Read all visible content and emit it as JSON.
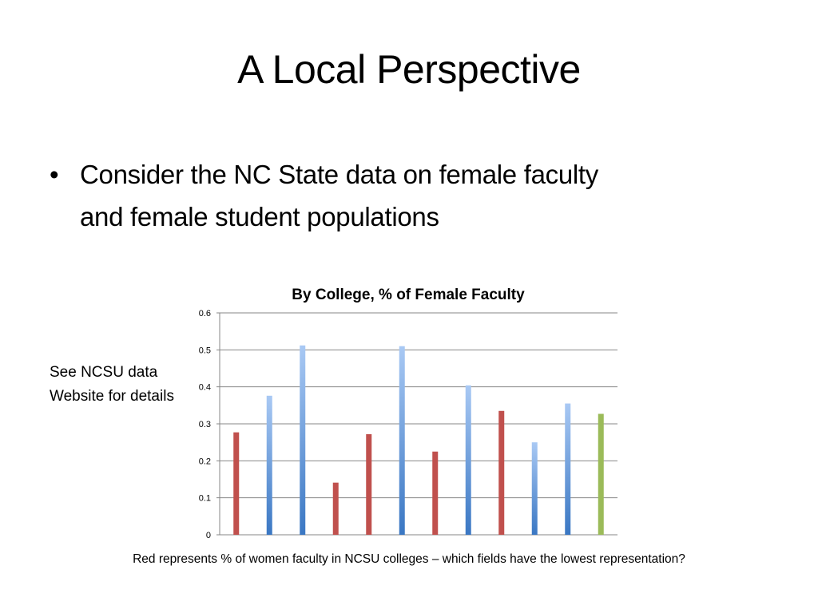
{
  "slide": {
    "title": "A Local Perspective",
    "bullets": [
      {
        "marker": "•",
        "lines": [
          "Consider the NC State data on female faculty",
          "and female student populations"
        ]
      }
    ],
    "side_note": [
      "See NCSU data",
      "Website for details"
    ],
    "caption": "Red represents % of women faculty in NCSU colleges – which fields have the lowest representation?"
  },
  "colors": {
    "red": "#C0504D",
    "blue_top": "#A9C9F4",
    "blue_bottom": "#3A77C3",
    "green": "#9BBB59",
    "gridline": "#878787",
    "axis": "#878787"
  },
  "chart_data": {
    "type": "bar",
    "title": "By College, % of Female Faculty",
    "xlabel": "",
    "ylabel": "",
    "ylim": [
      0,
      0.6
    ],
    "grid": true,
    "y_ticks": [
      "0",
      "0.1",
      "0.2",
      "0.3",
      "0.4",
      "0.5",
      "0.6"
    ],
    "y_tick_values": [
      0,
      0.1,
      0.2,
      0.3,
      0.4,
      0.5,
      0.6
    ],
    "categories": [
      "",
      "",
      "",
      "",
      "",
      "",
      "",
      "",
      "",
      "",
      "",
      ""
    ],
    "values": [
      0.277,
      0.376,
      0.512,
      0.141,
      0.272,
      0.51,
      0.225,
      0.404,
      0.335,
      0.25,
      0.355,
      0.327
    ],
    "bar_colors": [
      "red",
      "blue",
      "blue",
      "red",
      "red",
      "blue",
      "red",
      "blue",
      "red",
      "blue",
      "blue",
      "green"
    ]
  }
}
